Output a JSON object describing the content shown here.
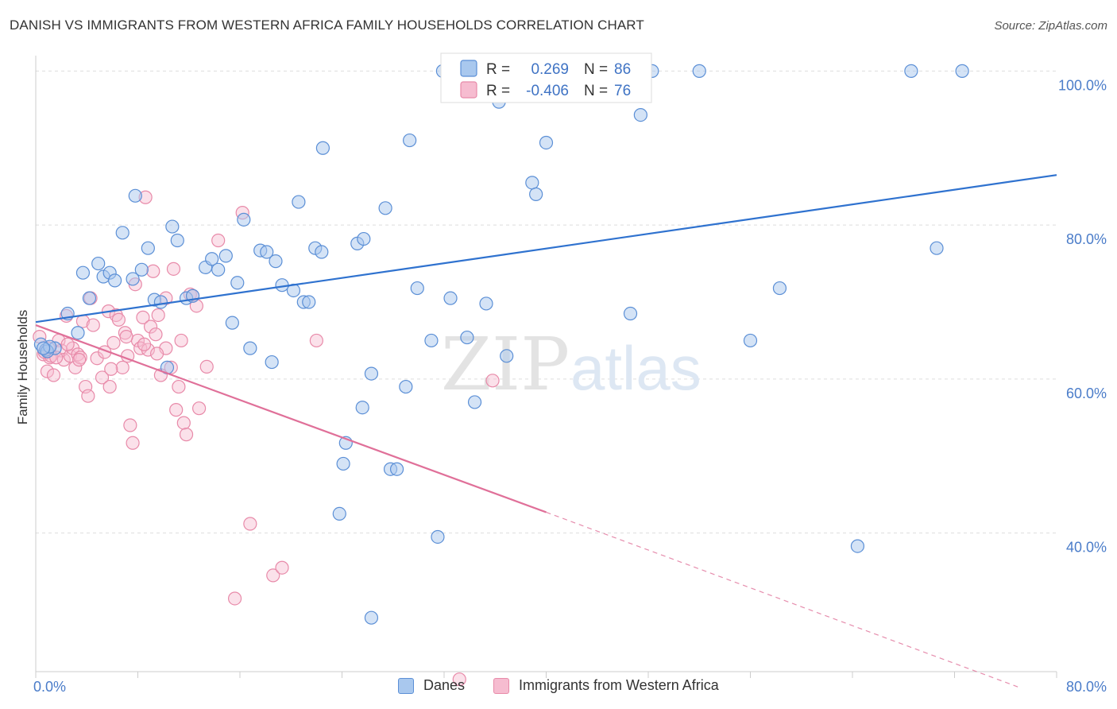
{
  "title": "DANISH VS IMMIGRANTS FROM WESTERN AFRICA FAMILY HOUSEHOLDS CORRELATION CHART",
  "source": "Source: ZipAtlas.com",
  "watermark": {
    "zip": "ZIP",
    "atlas": "atlas"
  },
  "colors": {
    "danes_fill": "#a9c8ee",
    "danes_stroke": "#5b8fd6",
    "danes_line": "#2f72cf",
    "imm_fill": "#f6bcd0",
    "imm_stroke": "#e88aa9",
    "imm_line": "#e07099",
    "tick_label": "#4a7cc9",
    "grid": "#dddddd"
  },
  "legend_top": {
    "rows": [
      {
        "r_label": "R =",
        "r_value": "0.269",
        "n_label": "N =",
        "n_value": "86"
      },
      {
        "r_label": "R =",
        "r_value": "-0.406",
        "n_label": "N =",
        "n_value": "76"
      }
    ]
  },
  "legend_bottom": {
    "danes": "Danes",
    "immigrants": "Immigrants from Western Africa"
  },
  "chart_data": {
    "type": "scatter",
    "ylabel": "Family Households",
    "xlim": [
      0,
      80
    ],
    "ylim": [
      22,
      102
    ],
    "x_tick_labels": [
      {
        "value": 0,
        "label": "0.0%"
      },
      {
        "value": 80,
        "label": "80.0%"
      }
    ],
    "y_tick_labels": [
      {
        "value": 40,
        "label": "40.0%"
      },
      {
        "value": 60,
        "label": "60.0%"
      },
      {
        "value": 80,
        "label": "80.0%"
      },
      {
        "value": 100,
        "label": "100.0%"
      }
    ],
    "gridlines_y": [
      40,
      60,
      80,
      100
    ],
    "x_minor_ticks": [
      0,
      8,
      16,
      24,
      32,
      40,
      48,
      56,
      64,
      72,
      80
    ],
    "series": [
      {
        "name": "Danes",
        "trend": {
          "x": [
            0,
            80
          ],
          "y": [
            67.4,
            86.5
          ]
        },
        "points": [
          [
            0.4,
            64.5
          ],
          [
            0.8,
            63.8
          ],
          [
            1.5,
            64.0
          ],
          [
            2.5,
            68.5
          ],
          [
            3.3,
            66.0
          ],
          [
            3.7,
            73.8
          ],
          [
            4.2,
            70.5
          ],
          [
            4.9,
            75.0
          ],
          [
            5.3,
            73.3
          ],
          [
            5.8,
            73.8
          ],
          [
            6.2,
            72.8
          ],
          [
            6.8,
            79.0
          ],
          [
            7.6,
            73.0
          ],
          [
            7.8,
            83.8
          ],
          [
            8.3,
            74.2
          ],
          [
            8.8,
            77.0
          ],
          [
            9.3,
            70.3
          ],
          [
            9.8,
            70.0
          ],
          [
            10.3,
            61.5
          ],
          [
            10.7,
            79.8
          ],
          [
            11.1,
            78.0
          ],
          [
            11.8,
            70.5
          ],
          [
            12.3,
            70.8
          ],
          [
            13.3,
            74.5
          ],
          [
            13.8,
            75.6
          ],
          [
            14.3,
            74.2
          ],
          [
            14.9,
            76.0
          ],
          [
            15.4,
            67.3
          ],
          [
            15.8,
            72.5
          ],
          [
            16.3,
            80.7
          ],
          [
            16.8,
            64.0
          ],
          [
            17.6,
            76.7
          ],
          [
            18.1,
            76.5
          ],
          [
            18.5,
            62.2
          ],
          [
            18.8,
            75.3
          ],
          [
            19.3,
            72.2
          ],
          [
            20.2,
            71.5
          ],
          [
            20.6,
            83.0
          ],
          [
            21.0,
            70.0
          ],
          [
            21.4,
            70.0
          ],
          [
            21.9,
            77.0
          ],
          [
            22.4,
            76.5
          ],
          [
            22.5,
            90.0
          ],
          [
            23.8,
            42.5
          ],
          [
            24.1,
            49.0
          ],
          [
            24.3,
            51.7
          ],
          [
            25.2,
            77.6
          ],
          [
            25.7,
            78.2
          ],
          [
            25.6,
            56.3
          ],
          [
            26.3,
            60.7
          ],
          [
            27.4,
            82.2
          ],
          [
            27.8,
            48.3
          ],
          [
            28.3,
            48.3
          ],
          [
            29.0,
            59.0
          ],
          [
            29.3,
            91.0
          ],
          [
            29.9,
            71.8
          ],
          [
            31.0,
            65.0
          ],
          [
            31.5,
            39.5
          ],
          [
            31.9,
            100.0
          ],
          [
            32.5,
            70.5
          ],
          [
            33.8,
            65.4
          ],
          [
            34.4,
            57.0
          ],
          [
            35.3,
            69.8
          ],
          [
            35.9,
            100.0
          ],
          [
            36.3,
            96.0
          ],
          [
            36.9,
            63.0
          ],
          [
            37.3,
            100.0
          ],
          [
            38.9,
            85.5
          ],
          [
            39.2,
            84.0
          ],
          [
            40.0,
            90.7
          ],
          [
            43.3,
            100.0
          ],
          [
            45.6,
            100.0
          ],
          [
            46.6,
            68.5
          ],
          [
            47.4,
            94.3
          ],
          [
            48.3,
            100.0
          ],
          [
            52.0,
            100.0
          ],
          [
            56.0,
            65.0
          ],
          [
            58.3,
            71.8
          ],
          [
            64.4,
            38.3
          ],
          [
            70.6,
            77.0
          ],
          [
            68.6,
            100.0
          ],
          [
            72.6,
            100.0
          ],
          [
            26.3,
            29.0
          ],
          [
            0.9,
            63.6
          ],
          [
            1.1,
            64.2
          ],
          [
            0.6,
            64.0
          ]
        ]
      },
      {
        "name": "Immigrants from Western Africa",
        "trend": {
          "x": [
            0,
            40
          ],
          "y": [
            67.0,
            42.7
          ]
        },
        "trend_dashed": {
          "x": [
            40,
            77
          ],
          "y": [
            42.7,
            20.0
          ]
        },
        "points": [
          [
            0.3,
            65.5
          ],
          [
            0.6,
            63.2
          ],
          [
            0.9,
            61.0
          ],
          [
            1.1,
            62.8
          ],
          [
            1.4,
            60.5
          ],
          [
            1.8,
            65.0
          ],
          [
            2.0,
            63.7
          ],
          [
            2.2,
            62.5
          ],
          [
            2.4,
            68.2
          ],
          [
            2.7,
            63.0
          ],
          [
            2.9,
            64.0
          ],
          [
            3.1,
            61.5
          ],
          [
            3.3,
            63.2
          ],
          [
            3.5,
            62.8
          ],
          [
            3.7,
            67.5
          ],
          [
            3.9,
            59.0
          ],
          [
            4.1,
            57.8
          ],
          [
            4.3,
            70.5
          ],
          [
            4.5,
            67.0
          ],
          [
            4.8,
            62.7
          ],
          [
            5.2,
            60.2
          ],
          [
            5.4,
            63.5
          ],
          [
            5.7,
            68.8
          ],
          [
            5.8,
            59.0
          ],
          [
            6.1,
            64.7
          ],
          [
            6.3,
            68.3
          ],
          [
            6.5,
            67.7
          ],
          [
            6.8,
            61.5
          ],
          [
            7.0,
            66.0
          ],
          [
            7.2,
            63.0
          ],
          [
            7.4,
            54.0
          ],
          [
            7.6,
            51.7
          ],
          [
            7.8,
            72.3
          ],
          [
            8.0,
            65.0
          ],
          [
            8.2,
            64.0
          ],
          [
            8.4,
            68.0
          ],
          [
            8.6,
            83.6
          ],
          [
            8.8,
            63.8
          ],
          [
            9.0,
            66.8
          ],
          [
            9.2,
            74.0
          ],
          [
            9.4,
            65.8
          ],
          [
            9.6,
            68.3
          ],
          [
            9.8,
            60.5
          ],
          [
            10.2,
            64.0
          ],
          [
            10.2,
            70.5
          ],
          [
            10.6,
            61.5
          ],
          [
            10.8,
            74.3
          ],
          [
            11.0,
            56.0
          ],
          [
            11.2,
            59.0
          ],
          [
            11.4,
            65.0
          ],
          [
            11.6,
            54.3
          ],
          [
            11.8,
            52.8
          ],
          [
            12.1,
            71.0
          ],
          [
            12.3,
            70.8
          ],
          [
            12.6,
            69.5
          ],
          [
            12.8,
            56.2
          ],
          [
            13.4,
            61.6
          ],
          [
            14.3,
            78.0
          ],
          [
            15.6,
            31.5
          ],
          [
            16.2,
            81.6
          ],
          [
            16.8,
            41.2
          ],
          [
            18.6,
            34.5
          ],
          [
            19.3,
            35.5
          ],
          [
            22.0,
            65.0
          ],
          [
            33.2,
            21.0
          ],
          [
            35.8,
            59.8
          ],
          [
            0.7,
            63.5
          ],
          [
            1.0,
            64.0
          ],
          [
            1.2,
            63.0
          ],
          [
            1.6,
            62.8
          ],
          [
            2.5,
            64.5
          ],
          [
            3.4,
            62.5
          ],
          [
            5.9,
            61.3
          ],
          [
            7.1,
            65.5
          ],
          [
            8.5,
            64.5
          ],
          [
            9.5,
            63.3
          ]
        ]
      }
    ]
  }
}
